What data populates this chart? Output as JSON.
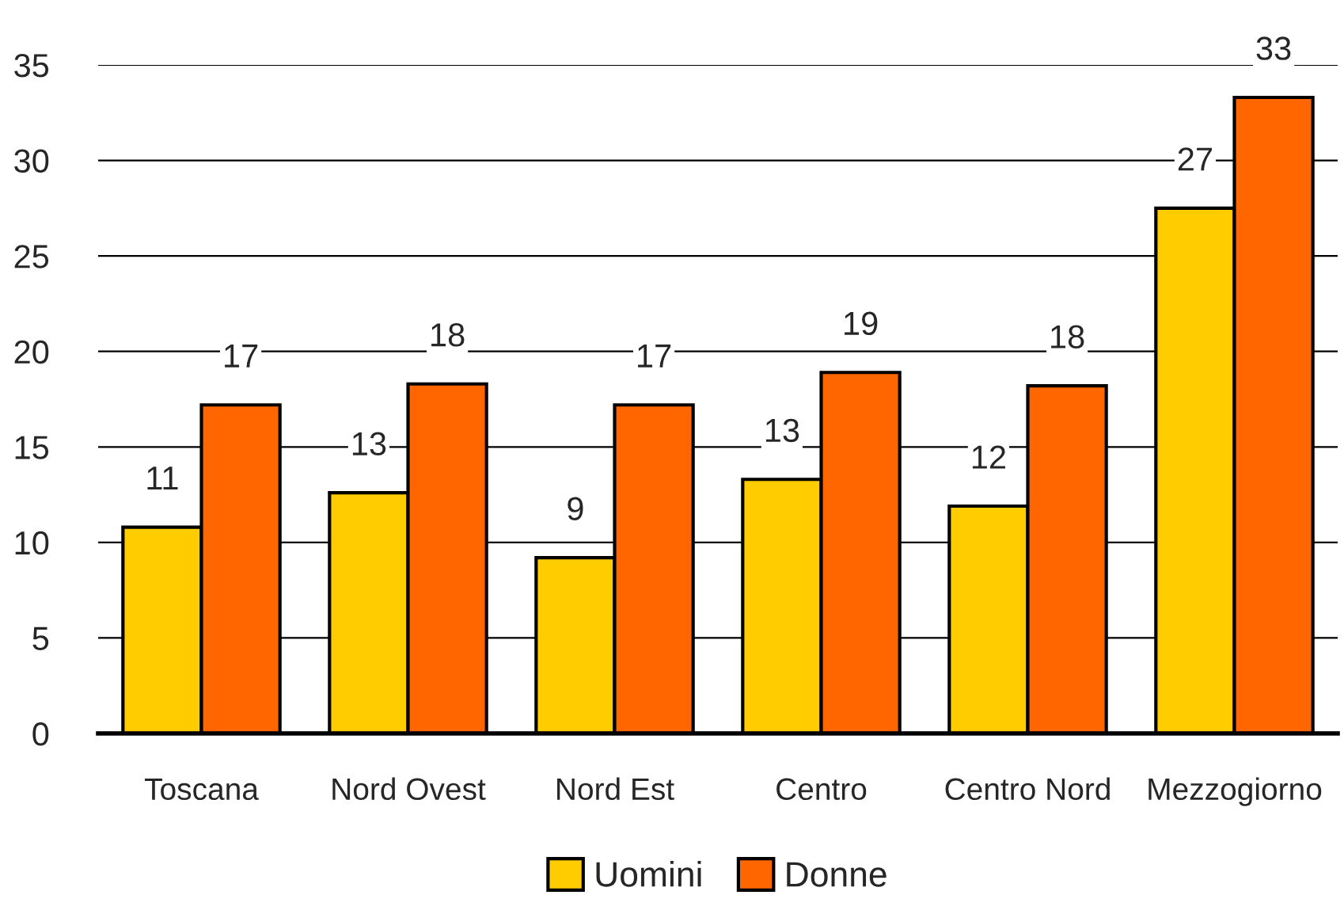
{
  "chart_data": {
    "type": "bar",
    "categories": [
      "Toscana",
      "Nord Ovest",
      "Nord Est",
      "Centro",
      "Centro Nord",
      "Mezzogiorno"
    ],
    "series": [
      {
        "name": "Uomini",
        "color": "#ffcc00",
        "values": [
          10.8,
          12.6,
          9.2,
          13.3,
          11.9,
          27.5
        ],
        "value_labels": [
          "11",
          "13",
          "9",
          "13",
          "12",
          "27"
        ]
      },
      {
        "name": "Donne",
        "color": "#ff6600",
        "values": [
          17.2,
          18.3,
          17.2,
          18.9,
          18.2,
          33.3
        ],
        "value_labels": [
          "17",
          "18",
          "17",
          "19",
          "18",
          "33"
        ]
      }
    ],
    "ylim": [
      0,
      35
    ],
    "yticks": [
      0,
      5,
      10,
      15,
      20,
      25,
      30,
      35
    ],
    "grid": "y",
    "legend": "bottom"
  }
}
